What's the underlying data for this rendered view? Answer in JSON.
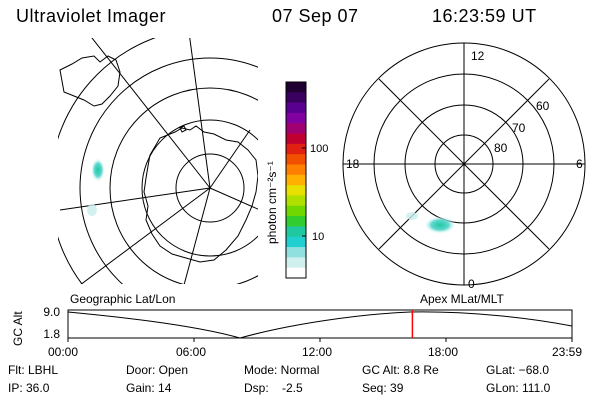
{
  "header": {
    "title": "Ultraviolet Imager",
    "date": "07 Sep 07",
    "time": "16:23:59 UT"
  },
  "colorbar": {
    "unit_label": "photon cm⁻²s⁻¹",
    "ticks": [
      "100",
      "10"
    ],
    "colors": [
      "#200030",
      "#3a0060",
      "#5a0090",
      "#8000a0",
      "#a00070",
      "#c00030",
      "#e02010",
      "#f05000",
      "#ff8000",
      "#ffb000",
      "#e8e000",
      "#b0e000",
      "#70d800",
      "#30cc30",
      "#20c8a0",
      "#20d0d0",
      "#90e0e0",
      "#d0f0f0",
      "#ffffff"
    ]
  },
  "polar_plot": {
    "clock_labels": {
      "top": "12",
      "left": "18",
      "right": "6",
      "bottom": "0"
    },
    "lat_labels": [
      "60",
      "70",
      "80"
    ]
  },
  "timeline": {
    "left_title": "Geographic Lat/Lon",
    "right_title": "Apex MLat/MLT",
    "axis_label": "GC Alt",
    "y_max": "9.0",
    "y_min": "1.8",
    "time_ticks": [
      "00:00",
      "06:00",
      "12:00",
      "18:00",
      "23:59"
    ],
    "marker_color": "#ff0000",
    "marker_time_hours": 16.4
  },
  "status": {
    "filter": "Flt: LBHL",
    "ip": "IP: 36.0",
    "door": "Door: Open",
    "gain": "Gain: 14",
    "mode": "Mode: Normal",
    "dsp": "Dsp:    -2.5",
    "gc_alt": "GC Alt: 8.8 Re",
    "seq": "Seq: 39",
    "glat": "GLat: −68.0",
    "glon": "GLon: 111.0"
  }
}
